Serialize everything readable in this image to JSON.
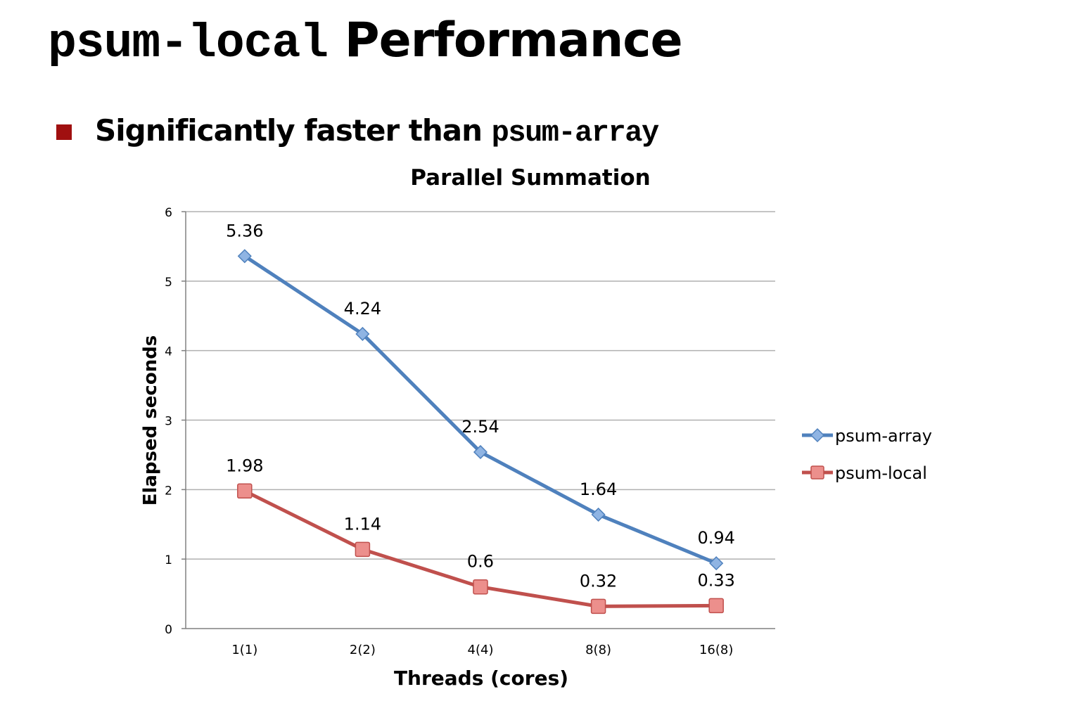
{
  "slide": {
    "title_code": "psum-local",
    "title_text": "Performance",
    "bullet_text": "Significantly faster than",
    "bullet_code": "psum-array"
  },
  "chart_data": {
    "type": "line",
    "title": "Parallel Summation",
    "xlabel": "Threads (cores)",
    "ylabel": "Elapsed seconds",
    "categories": [
      "1(1)",
      "2(2)",
      "4(4)",
      "8(8)",
      "16(8)"
    ],
    "ylim": [
      0,
      6
    ],
    "yticks": [
      0,
      1,
      2,
      3,
      4,
      5,
      6
    ],
    "grid": true,
    "legend": "right",
    "series": [
      {
        "name": "psum-array",
        "values": [
          5.36,
          4.24,
          2.54,
          1.64,
          0.94
        ],
        "labels": [
          "5.36",
          "4.24",
          "2.54",
          "1.64",
          "0.94"
        ],
        "color": "#4f81bd",
        "marker": "diamond"
      },
      {
        "name": "psum-local",
        "values": [
          1.98,
          1.14,
          0.6,
          0.32,
          0.33
        ],
        "labels": [
          "1.98",
          "1.14",
          "0.6",
          "0.32",
          "0.33"
        ],
        "color": "#c0504d",
        "marker": "square"
      }
    ]
  }
}
